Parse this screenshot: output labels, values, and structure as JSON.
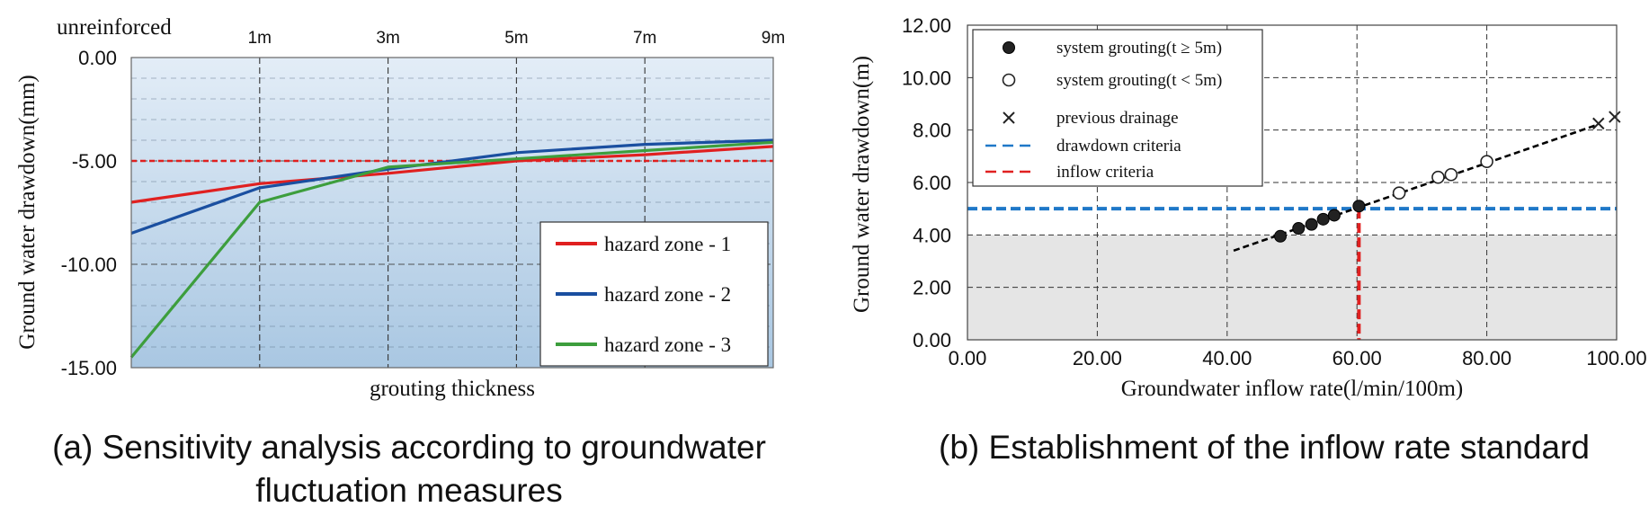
{
  "chart_data": [
    {
      "type": "line",
      "top_left_label": "unreinforced",
      "categories": [
        "unreinforced",
        "1m",
        "3m",
        "5m",
        "7m",
        "9m"
      ],
      "top_tick_labels": [
        "1m",
        "3m",
        "5m",
        "7m",
        "9m"
      ],
      "y_tick_labels": [
        "0.00",
        "-5.00",
        "-10.00",
        "-15.00"
      ],
      "y_ticks": [
        0,
        -5,
        -10,
        -15
      ],
      "ylim": [
        -15,
        0
      ],
      "ylabel": "Ground water drawdown(mm)",
      "xlabel": "grouting thickness",
      "reference_line": {
        "y": -5,
        "color": "#e02020"
      },
      "series": [
        {
          "name": "hazard zone - 1",
          "color": "#e02020",
          "values": [
            -7.0,
            -6.1,
            -5.6,
            -5.0,
            -4.7,
            -4.3
          ]
        },
        {
          "name": "hazard zone - 2",
          "color": "#1a4fa0",
          "values": [
            -8.5,
            -6.3,
            -5.4,
            -4.6,
            -4.2,
            -4.0
          ]
        },
        {
          "name": "hazard zone - 3",
          "color": "#3d9e3d",
          "values": [
            -14.5,
            -7.0,
            -5.3,
            -4.9,
            -4.5,
            -4.1
          ]
        }
      ],
      "caption": [
        "(a) Sensitivity analysis according to groundwater",
        "fluctuation measures"
      ]
    },
    {
      "type": "scatter",
      "x_tick_labels": [
        "0.00",
        "20.00",
        "40.00",
        "60.00",
        "80.00",
        "100.00"
      ],
      "x_ticks": [
        0,
        20,
        40,
        60,
        80,
        100
      ],
      "y_tick_labels": [
        "0.00",
        "2.00",
        "4.00",
        "6.00",
        "8.00",
        "10.00",
        "12.00"
      ],
      "y_ticks": [
        0,
        2,
        4,
        6,
        8,
        10,
        12
      ],
      "xlim": [
        0,
        100
      ],
      "ylim": [
        0,
        12
      ],
      "xlabel": "Groundwater inflow rate(l/min/100m)",
      "ylabel": "Ground water drawdown(m)",
      "series": [
        {
          "name": "system grouting(t ≥ 5m)",
          "marker": "filled-circle",
          "x": [
            48.2,
            51.0,
            53.0,
            54.8,
            56.5,
            60.3
          ],
          "y": [
            3.95,
            4.25,
            4.4,
            4.6,
            4.75,
            5.1
          ]
        },
        {
          "name": "system grouting(t < 5m)",
          "marker": "open-circle",
          "x": [
            66.5,
            72.5,
            74.5,
            80.0
          ],
          "y": [
            5.6,
            6.2,
            6.3,
            6.8
          ]
        },
        {
          "name": "previous drainage",
          "marker": "cross",
          "x": [
            97.2,
            99.7
          ],
          "y": [
            8.25,
            8.5
          ]
        }
      ],
      "trend_line": {
        "x": [
          41.0,
          97.0
        ],
        "y": [
          3.4,
          8.2
        ],
        "color": "#000000",
        "style": "dashed"
      },
      "drawdown_criteria": {
        "name": "drawdown criteria",
        "y": 5.0,
        "color": "#1f78c8"
      },
      "inflow_criteria": {
        "name": "inflow criteria",
        "x": 60.3,
        "color": "#e02020"
      },
      "shaded_below": 4.0,
      "caption": [
        "(b) Establishment of the inflow rate standard"
      ]
    }
  ]
}
